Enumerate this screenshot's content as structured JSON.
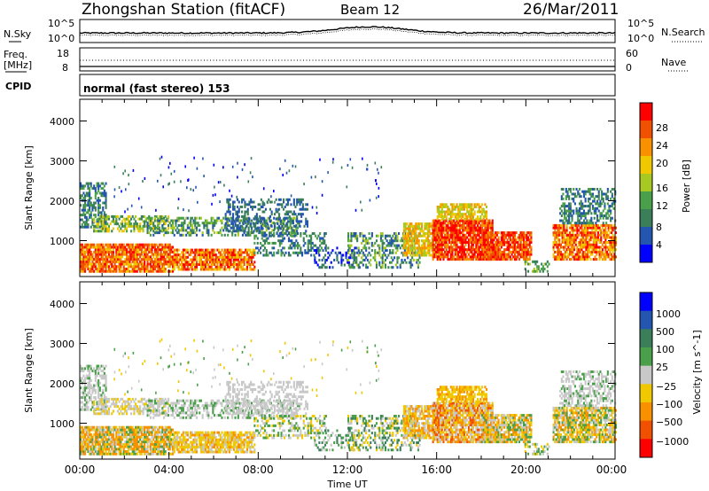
{
  "header": {
    "station": "Zhongshan Station (fitACF)",
    "beam": "Beam 12",
    "date": "26/Mar/2011"
  },
  "noise_panel": {
    "left_label": "N.Sky",
    "left_ticks": [
      "10^5",
      "10^0"
    ],
    "right_label": "N.Search",
    "right_ticks": [
      "10^5",
      "10^0"
    ]
  },
  "freq_panel": {
    "left_label_1": "Freq.",
    "left_label_2": "[MHz]",
    "left_ticks": [
      "18",
      "8"
    ],
    "right_label": "Nave",
    "right_ticks": [
      "60",
      "0"
    ]
  },
  "cpid_panel": {
    "label": "CPID",
    "text": "normal (fast stereo) 153"
  },
  "colors": {
    "power_scale": [
      "#0000ff",
      "#2456b0",
      "#3a7f5a",
      "#4aa04a",
      "#a8c822",
      "#f0c800",
      "#f89000",
      "#f05000",
      "#ff0000"
    ],
    "velocity_scale": [
      "#0000ff",
      "#2456b0",
      "#3a7f5a",
      "#4aa04a",
      "#c8c8c8",
      "#f0c800",
      "#f89000",
      "#f05000",
      "#ff0000"
    ]
  },
  "chart_data": [
    {
      "type": "heatmap",
      "panel": "power",
      "ylabel": "Slant Range [km]",
      "ylim": [
        200,
        4600
      ],
      "xlim": [
        "00:00",
        "24:00"
      ],
      "y_ticks": [
        "1000",
        "2000",
        "3000",
        "4000"
      ],
      "colorbar_label": "Power [dB]",
      "colorbar_ticks": [
        "4",
        "8",
        "12",
        "16",
        "20",
        "24",
        "28"
      ]
    },
    {
      "type": "heatmap",
      "panel": "velocity",
      "ylabel": "Slant Range [km]",
      "ylim": [
        200,
        4600
      ],
      "xlim": [
        "00:00",
        "24:00"
      ],
      "y_ticks": [
        "1000",
        "2000",
        "3000",
        "4000"
      ],
      "colorbar_label": "Velocity [m s^-1]",
      "colorbar_ticks": [
        "1000",
        "500",
        "100",
        "25",
        "−25",
        "−100",
        "−500",
        "−1000"
      ]
    }
  ],
  "x_axis": {
    "ticks": [
      "00:00",
      "04:00",
      "08:00",
      "12:00",
      "16:00",
      "20:00",
      "00:00"
    ],
    "label": "Time UT"
  }
}
